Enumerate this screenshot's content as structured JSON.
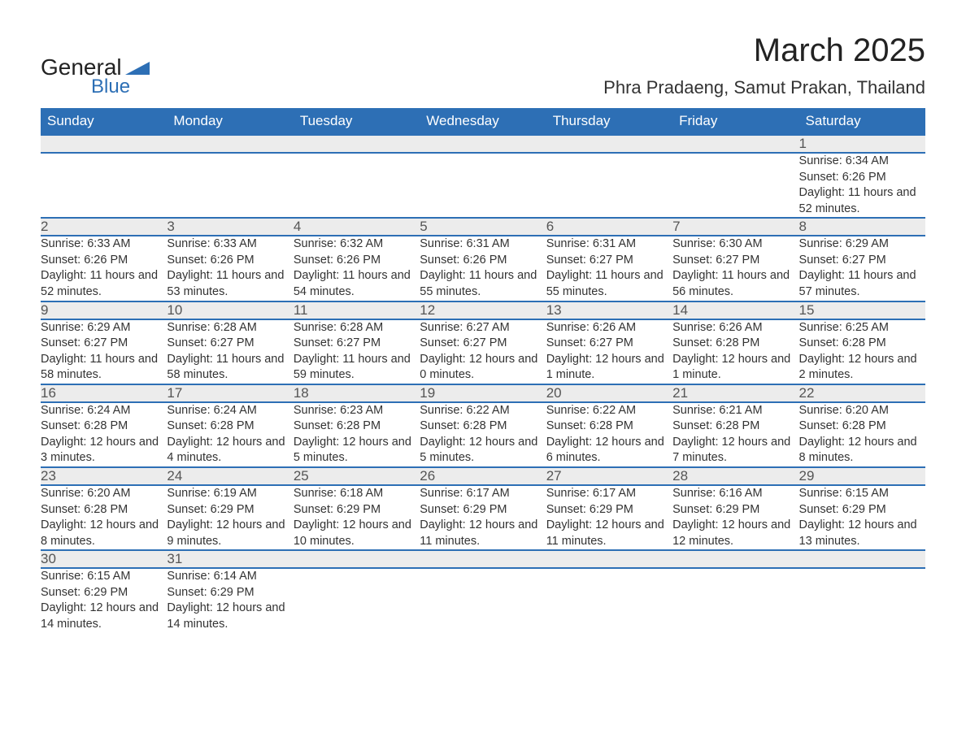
{
  "brand": {
    "line1": "General",
    "line2": "Blue",
    "accent_color": "#2d6fb5"
  },
  "title": "March 2025",
  "location": "Phra Pradaeng, Samut Prakan, Thailand",
  "colors": {
    "header_bg": "#2d6fb5",
    "header_text": "#ffffff",
    "daynum_bg": "#ececec",
    "body_text": "#333333",
    "rule": "#2d6fb5"
  },
  "fonts": {
    "title_size_pt": 30,
    "location_size_pt": 16,
    "header_size_pt": 13,
    "cell_size_pt": 11
  },
  "weekdays": [
    "Sunday",
    "Monday",
    "Tuesday",
    "Wednesday",
    "Thursday",
    "Friday",
    "Saturday"
  ],
  "labels": {
    "sunrise": "Sunrise:",
    "sunset": "Sunset:",
    "daylight": "Daylight:"
  },
  "weeks": [
    [
      null,
      null,
      null,
      null,
      null,
      null,
      {
        "d": "1",
        "sr": "6:34 AM",
        "ss": "6:26 PM",
        "dl": "11 hours and 52 minutes."
      }
    ],
    [
      {
        "d": "2",
        "sr": "6:33 AM",
        "ss": "6:26 PM",
        "dl": "11 hours and 52 minutes."
      },
      {
        "d": "3",
        "sr": "6:33 AM",
        "ss": "6:26 PM",
        "dl": "11 hours and 53 minutes."
      },
      {
        "d": "4",
        "sr": "6:32 AM",
        "ss": "6:26 PM",
        "dl": "11 hours and 54 minutes."
      },
      {
        "d": "5",
        "sr": "6:31 AM",
        "ss": "6:26 PM",
        "dl": "11 hours and 55 minutes."
      },
      {
        "d": "6",
        "sr": "6:31 AM",
        "ss": "6:27 PM",
        "dl": "11 hours and 55 minutes."
      },
      {
        "d": "7",
        "sr": "6:30 AM",
        "ss": "6:27 PM",
        "dl": "11 hours and 56 minutes."
      },
      {
        "d": "8",
        "sr": "6:29 AM",
        "ss": "6:27 PM",
        "dl": "11 hours and 57 minutes."
      }
    ],
    [
      {
        "d": "9",
        "sr": "6:29 AM",
        "ss": "6:27 PM",
        "dl": "11 hours and 58 minutes."
      },
      {
        "d": "10",
        "sr": "6:28 AM",
        "ss": "6:27 PM",
        "dl": "11 hours and 58 minutes."
      },
      {
        "d": "11",
        "sr": "6:28 AM",
        "ss": "6:27 PM",
        "dl": "11 hours and 59 minutes."
      },
      {
        "d": "12",
        "sr": "6:27 AM",
        "ss": "6:27 PM",
        "dl": "12 hours and 0 minutes."
      },
      {
        "d": "13",
        "sr": "6:26 AM",
        "ss": "6:27 PM",
        "dl": "12 hours and 1 minute."
      },
      {
        "d": "14",
        "sr": "6:26 AM",
        "ss": "6:28 PM",
        "dl": "12 hours and 1 minute."
      },
      {
        "d": "15",
        "sr": "6:25 AM",
        "ss": "6:28 PM",
        "dl": "12 hours and 2 minutes."
      }
    ],
    [
      {
        "d": "16",
        "sr": "6:24 AM",
        "ss": "6:28 PM",
        "dl": "12 hours and 3 minutes."
      },
      {
        "d": "17",
        "sr": "6:24 AM",
        "ss": "6:28 PM",
        "dl": "12 hours and 4 minutes."
      },
      {
        "d": "18",
        "sr": "6:23 AM",
        "ss": "6:28 PM",
        "dl": "12 hours and 5 minutes."
      },
      {
        "d": "19",
        "sr": "6:22 AM",
        "ss": "6:28 PM",
        "dl": "12 hours and 5 minutes."
      },
      {
        "d": "20",
        "sr": "6:22 AM",
        "ss": "6:28 PM",
        "dl": "12 hours and 6 minutes."
      },
      {
        "d": "21",
        "sr": "6:21 AM",
        "ss": "6:28 PM",
        "dl": "12 hours and 7 minutes."
      },
      {
        "d": "22",
        "sr": "6:20 AM",
        "ss": "6:28 PM",
        "dl": "12 hours and 8 minutes."
      }
    ],
    [
      {
        "d": "23",
        "sr": "6:20 AM",
        "ss": "6:28 PM",
        "dl": "12 hours and 8 minutes."
      },
      {
        "d": "24",
        "sr": "6:19 AM",
        "ss": "6:29 PM",
        "dl": "12 hours and 9 minutes."
      },
      {
        "d": "25",
        "sr": "6:18 AM",
        "ss": "6:29 PM",
        "dl": "12 hours and 10 minutes."
      },
      {
        "d": "26",
        "sr": "6:17 AM",
        "ss": "6:29 PM",
        "dl": "12 hours and 11 minutes."
      },
      {
        "d": "27",
        "sr": "6:17 AM",
        "ss": "6:29 PM",
        "dl": "12 hours and 11 minutes."
      },
      {
        "d": "28",
        "sr": "6:16 AM",
        "ss": "6:29 PM",
        "dl": "12 hours and 12 minutes."
      },
      {
        "d": "29",
        "sr": "6:15 AM",
        "ss": "6:29 PM",
        "dl": "12 hours and 13 minutes."
      }
    ],
    [
      {
        "d": "30",
        "sr": "6:15 AM",
        "ss": "6:29 PM",
        "dl": "12 hours and 14 minutes."
      },
      {
        "d": "31",
        "sr": "6:14 AM",
        "ss": "6:29 PM",
        "dl": "12 hours and 14 minutes."
      },
      null,
      null,
      null,
      null,
      null
    ]
  ]
}
